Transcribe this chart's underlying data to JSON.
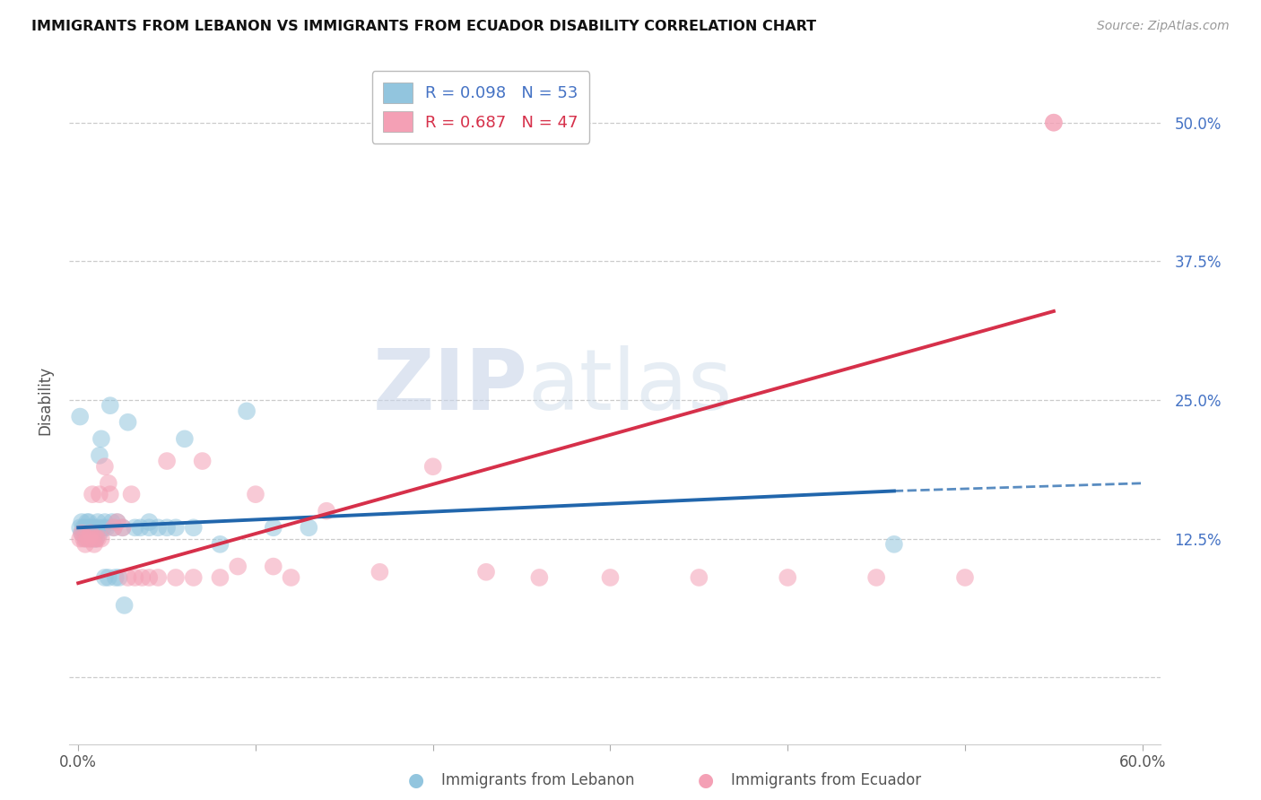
{
  "title": "IMMIGRANTS FROM LEBANON VS IMMIGRANTS FROM ECUADOR DISABILITY CORRELATION CHART",
  "source": "Source: ZipAtlas.com",
  "ylabel_label": "Disability",
  "legend_label1": "Immigrants from Lebanon",
  "legend_label2": "Immigrants from Ecuador",
  "R1": 0.098,
  "N1": 53,
  "R2": 0.687,
  "N2": 47,
  "xlim": [
    -0.005,
    0.61
  ],
  "ylim": [
    -0.06,
    0.56
  ],
  "xticks": [
    0.0,
    0.1,
    0.2,
    0.3,
    0.4,
    0.5,
    0.6
  ],
  "xtick_labels": [
    "0.0%",
    "",
    "",
    "",
    "",
    "",
    "60.0%"
  ],
  "yticks": [
    0.0,
    0.125,
    0.25,
    0.375,
    0.5
  ],
  "ytick_labels": [
    "",
    "12.5%",
    "25.0%",
    "37.5%",
    "50.0%"
  ],
  "color_blue": "#92c5de",
  "color_pink": "#f4a0b5",
  "line_color_blue": "#2166ac",
  "line_color_pink": "#d6304a",
  "watermark_zip": "ZIP",
  "watermark_atlas": "atlas",
  "background_color": "#ffffff",
  "blue_x": [
    0.001,
    0.002,
    0.002,
    0.003,
    0.003,
    0.004,
    0.004,
    0.005,
    0.005,
    0.006,
    0.006,
    0.007,
    0.007,
    0.008,
    0.008,
    0.009,
    0.009,
    0.01,
    0.01,
    0.011,
    0.011,
    0.012,
    0.012,
    0.013,
    0.014,
    0.015,
    0.016,
    0.018,
    0.019,
    0.02,
    0.022,
    0.025,
    0.028,
    0.032,
    0.035,
    0.04,
    0.04,
    0.045,
    0.05,
    0.055,
    0.06,
    0.065,
    0.08,
    0.095,
    0.11,
    0.13,
    0.015,
    0.017,
    0.021,
    0.023,
    0.026,
    0.46,
    0.001
  ],
  "blue_y": [
    0.135,
    0.14,
    0.13,
    0.13,
    0.135,
    0.135,
    0.125,
    0.13,
    0.14,
    0.135,
    0.14,
    0.13,
    0.125,
    0.13,
    0.135,
    0.125,
    0.135,
    0.13,
    0.125,
    0.135,
    0.14,
    0.13,
    0.2,
    0.215,
    0.135,
    0.14,
    0.135,
    0.245,
    0.14,
    0.135,
    0.14,
    0.135,
    0.23,
    0.135,
    0.135,
    0.14,
    0.135,
    0.135,
    0.135,
    0.135,
    0.215,
    0.135,
    0.12,
    0.24,
    0.135,
    0.135,
    0.09,
    0.09,
    0.09,
    0.09,
    0.065,
    0.12,
    0.235
  ],
  "pink_x": [
    0.001,
    0.002,
    0.003,
    0.004,
    0.005,
    0.006,
    0.007,
    0.008,
    0.009,
    0.01,
    0.011,
    0.013,
    0.015,
    0.017,
    0.02,
    0.022,
    0.025,
    0.028,
    0.032,
    0.036,
    0.04,
    0.045,
    0.055,
    0.065,
    0.08,
    0.1,
    0.12,
    0.14,
    0.17,
    0.2,
    0.23,
    0.26,
    0.3,
    0.35,
    0.4,
    0.45,
    0.5,
    0.55,
    0.008,
    0.012,
    0.018,
    0.03,
    0.05,
    0.07,
    0.09,
    0.11,
    0.55
  ],
  "pink_y": [
    0.125,
    0.13,
    0.125,
    0.12,
    0.125,
    0.125,
    0.13,
    0.125,
    0.12,
    0.125,
    0.125,
    0.125,
    0.19,
    0.175,
    0.135,
    0.14,
    0.135,
    0.09,
    0.09,
    0.09,
    0.09,
    0.09,
    0.09,
    0.09,
    0.09,
    0.165,
    0.09,
    0.15,
    0.095,
    0.19,
    0.095,
    0.09,
    0.09,
    0.09,
    0.09,
    0.09,
    0.09,
    0.5,
    0.165,
    0.165,
    0.165,
    0.165,
    0.195,
    0.195,
    0.1,
    0.1,
    0.5
  ],
  "blue_line_x_start": 0.001,
  "blue_line_x_solid_end": 0.46,
  "blue_line_x_dash_end": 0.6,
  "pink_line_x_start": 0.001,
  "pink_line_x_end": 0.55
}
